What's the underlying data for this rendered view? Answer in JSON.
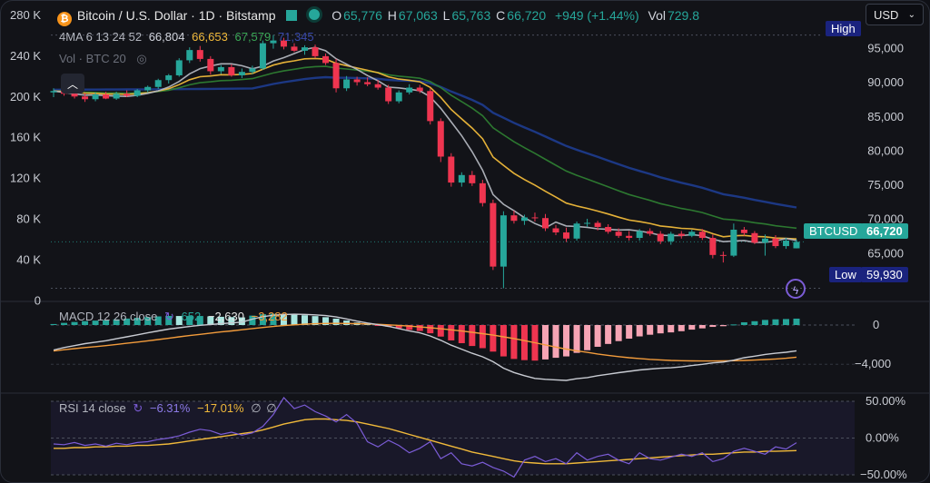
{
  "header": {
    "title": "Bitcoin / U.S. Dollar · 1D · Bitstamp",
    "open_label": "O",
    "open": "65,776",
    "high_label": "H",
    "high": "67,063",
    "low_label": "L",
    "low": "65,763",
    "close_label": "C",
    "close": "66,720",
    "change": "+949 (+1.44%)",
    "vol_label": "Vol",
    "vol": "729.8"
  },
  "currency_select": {
    "value": "USD"
  },
  "ma_legend": {
    "label": "4MA 6 13 24 52",
    "v1": "66,804",
    "v2": "66,653",
    "v3": "67,579",
    "v4": "71,345"
  },
  "vol_legend": {
    "label": "Vol · BTC 20"
  },
  "price_tags": {
    "high_label": "High",
    "high_value": "97,000",
    "symbol": "BTCUSD",
    "symbol_value": "66,720",
    "low_label": "Low",
    "low_value": "59,930"
  },
  "macd_legend": {
    "label": "MACD 12 26 close",
    "v1": "652",
    "v2": "−2,630",
    "v3": "−3,282"
  },
  "rsi_legend": {
    "label": "RSI 14 close",
    "v1": "−6.31%",
    "v2": "−17.01%",
    "v3": "∅",
    "v4": "∅"
  },
  "colors": {
    "up": "#26a69a",
    "down": "#ef3550",
    "ma1": "#b2b5be",
    "ma2": "#f0b93a",
    "ma3": "#2e7d32",
    "ma4": "#1e3a8a",
    "macd": "#c8cbd2",
    "signal": "#f39c3c",
    "rsi": "#7b5cd6",
    "rsi_ma": "#f0b93a"
  },
  "chart_data": [
    {
      "type": "candlestick",
      "title": "Bitcoin / U.S. Dollar · 1D · Bitstamp",
      "price_axis_ticks": [
        "95,000",
        "90,000",
        "85,000",
        "80,000",
        "75,000",
        "70,000",
        "65,000"
      ],
      "volume_axis_ticks": [
        "280 K",
        "240 K",
        "200 K",
        "160 K",
        "120 K",
        "80 K",
        "40 K",
        "0"
      ],
      "ylim": [
        58000,
        100000
      ],
      "candles": [
        [
          88600,
          89200,
          87900,
          88800
        ],
        [
          88800,
          89400,
          88100,
          88400
        ],
        [
          88400,
          89000,
          87700,
          88000
        ],
        [
          88000,
          88500,
          87200,
          87600
        ],
        [
          87600,
          88600,
          87300,
          88300
        ],
        [
          88300,
          88700,
          87600,
          87700
        ],
        [
          87700,
          88700,
          87500,
          88400
        ],
        [
          88400,
          88900,
          87900,
          88100
        ],
        [
          88100,
          89100,
          87900,
          88900
        ],
        [
          88900,
          89600,
          88600,
          89400
        ],
        [
          89400,
          90600,
          89100,
          90400
        ],
        [
          90400,
          91300,
          89900,
          91100
        ],
        [
          91100,
          93600,
          90900,
          93300
        ],
        [
          93300,
          95200,
          92900,
          94800
        ],
        [
          94800,
          95400,
          93100,
          93500
        ],
        [
          93500,
          93900,
          91200,
          91700
        ],
        [
          91700,
          92600,
          91300,
          92300
        ],
        [
          92300,
          92700,
          90900,
          91100
        ],
        [
          91100,
          92100,
          90700,
          91600
        ],
        [
          91600,
          92500,
          91300,
          92100
        ],
        [
          92100,
          96200,
          91900,
          95800
        ],
        [
          95800,
          97000,
          95000,
          96200
        ],
        [
          96200,
          96600,
          94900,
          95300
        ],
        [
          95300,
          95800,
          94500,
          94700
        ],
        [
          94700,
          95500,
          94100,
          95200
        ],
        [
          95200,
          95600,
          93600,
          93900
        ],
        [
          93900,
          94300,
          92600,
          92900
        ],
        [
          92900,
          93500,
          88600,
          89200
        ],
        [
          89200,
          91000,
          88800,
          90500
        ],
        [
          90500,
          90900,
          89600,
          90100
        ],
        [
          90100,
          90800,
          89500,
          89800
        ],
        [
          89800,
          90400,
          89000,
          89300
        ],
        [
          89300,
          89700,
          86900,
          87300
        ],
        [
          87300,
          88900,
          87000,
          88600
        ],
        [
          88600,
          89800,
          88300,
          89300
        ],
        [
          89300,
          89700,
          88500,
          88800
        ],
        [
          88800,
          89200,
          83900,
          84400
        ],
        [
          84400,
          84800,
          78400,
          79200
        ],
        [
          79200,
          79700,
          74800,
          75400
        ],
        [
          75400,
          76900,
          74800,
          76500
        ],
        [
          76500,
          77100,
          74900,
          75300
        ],
        [
          75300,
          75800,
          71900,
          72400
        ],
        [
          72400,
          72900,
          62600,
          63100
        ],
        [
          63100,
          71200,
          59930,
          70600
        ],
        [
          70600,
          71300,
          69400,
          69800
        ],
        [
          69800,
          70700,
          69200,
          70300
        ],
        [
          70300,
          71000,
          69700,
          70200
        ],
        [
          70200,
          70800,
          68300,
          68700
        ],
        [
          68700,
          69200,
          67700,
          68100
        ],
        [
          68100,
          68800,
          66700,
          67200
        ],
        [
          67200,
          69700,
          66900,
          69400
        ],
        [
          69400,
          70100,
          68900,
          69500
        ],
        [
          69500,
          69800,
          68400,
          68900
        ],
        [
          68900,
          69300,
          67900,
          68200
        ],
        [
          68200,
          68700,
          67300,
          67600
        ],
        [
          67600,
          68300,
          66900,
          67300
        ],
        [
          67300,
          68600,
          66900,
          68300
        ],
        [
          68300,
          68700,
          67600,
          67900
        ],
        [
          67900,
          68300,
          66400,
          66800
        ],
        [
          66800,
          68200,
          66300,
          67900
        ],
        [
          67900,
          68300,
          67200,
          67600
        ],
        [
          67600,
          68500,
          67400,
          68200
        ],
        [
          68200,
          68600,
          67000,
          67300
        ],
        [
          67300,
          67800,
          64300,
          64800
        ],
        [
          64800,
          65300,
          63700,
          64700
        ],
        [
          64700,
          69400,
          64500,
          68500
        ],
        [
          68500,
          68900,
          67600,
          68000
        ],
        [
          68000,
          68300,
          66400,
          66600
        ],
        [
          66600,
          67800,
          64700,
          67200
        ],
        [
          67200,
          67700,
          65800,
          66100
        ],
        [
          66100,
          67300,
          65700,
          66900
        ],
        [
          65776,
          67063,
          65763,
          66720
        ]
      ]
    },
    {
      "type": "line",
      "title": "MACD 12 26 close",
      "y_ticks": [
        "0",
        "−4,000"
      ],
      "series_values": [
        "652",
        "−2,630",
        "−3,282"
      ],
      "macd": [
        -2550,
        -2300,
        -2100,
        -1900,
        -1750,
        -1600,
        -1400,
        -1200,
        -1000,
        -800,
        -600,
        -420,
        -280,
        -150,
        -30,
        60,
        140,
        210,
        300,
        600,
        850,
        1000,
        1070,
        1100,
        1080,
        1040,
        960,
        820,
        620,
        400,
        200,
        40,
        -140,
        -360,
        -600,
        -800,
        -1120,
        -1560,
        -2060,
        -2460,
        -2880,
        -3240,
        -3740,
        -4400,
        -4840,
        -5170,
        -5440,
        -5540,
        -5590,
        -5650,
        -5470,
        -5360,
        -5170,
        -5020,
        -4860,
        -4720,
        -4580,
        -4490,
        -4410,
        -4360,
        -4270,
        -4130,
        -4010,
        -3860,
        -3780,
        -3580,
        -3330,
        -3180,
        -3000,
        -2880,
        -2780,
        -2630
      ],
      "signal": [
        -2650,
        -2520,
        -2410,
        -2300,
        -2200,
        -2100,
        -1980,
        -1860,
        -1740,
        -1610,
        -1480,
        -1350,
        -1200,
        -1070,
        -950,
        -820,
        -700,
        -600,
        -480,
        -360,
        -250,
        -150,
        -60,
        20,
        80,
        130,
        160,
        170,
        160,
        140,
        110,
        70,
        20,
        -40,
        -110,
        -190,
        -280,
        -380,
        -490,
        -610,
        -740,
        -880,
        -1030,
        -1200,
        -1380,
        -1590,
        -1810,
        -2030,
        -2250,
        -2450,
        -2630,
        -2790,
        -2950,
        -3090,
        -3220,
        -3330,
        -3420,
        -3500,
        -3560,
        -3610,
        -3640,
        -3660,
        -3670,
        -3670,
        -3660,
        -3640,
        -3610,
        -3570,
        -3520,
        -3460,
        -3390,
        -3282
      ],
      "histogram": [
        100,
        220,
        310,
        400,
        450,
        500,
        580,
        660,
        740,
        810,
        880,
        930,
        920,
        920,
        920,
        880,
        840,
        810,
        780,
        960,
        1100,
        1150,
        1130,
        1080,
        1000,
        910,
        800,
        650,
        460,
        260,
        90,
        -30,
        -160,
        -320,
        -490,
        -610,
        -840,
        -1180,
        -1570,
        -1850,
        -2140,
        -2360,
        -2710,
        -3200,
        -3460,
        -3580,
        -3630,
        -3510,
        -3340,
        -3200,
        -2840,
        -2570,
        -2220,
        -1930,
        -1640,
        -1390,
        -1160,
        -990,
        -850,
        -750,
        -630,
        -470,
        -340,
        -190,
        -120,
        60,
        280,
        390,
        520,
        580,
        610,
        652
      ]
    },
    {
      "type": "line",
      "title": "RSI 14 close",
      "y_ticks": [
        "50.00%",
        "0.00%",
        "−50.00%"
      ],
      "series_values": [
        "−6.31%",
        "−17.01%"
      ],
      "ylim": [
        -55,
        55
      ],
      "rsi": [
        -8,
        -9,
        -6,
        -10,
        -8,
        -11,
        -7,
        -9,
        -6,
        -5,
        -2,
        0,
        3,
        8,
        12,
        10,
        5,
        8,
        4,
        7,
        16,
        32,
        55,
        40,
        45,
        36,
        30,
        22,
        32,
        20,
        -5,
        -12,
        -3,
        -10,
        -20,
        -14,
        -5,
        -28,
        -20,
        -35,
        -38,
        -33,
        -40,
        -45,
        -53,
        -30,
        -25,
        -32,
        -28,
        -35,
        -20,
        -30,
        -25,
        -22,
        -30,
        -35,
        -20,
        -28,
        -30,
        -26,
        -22,
        -25,
        -20,
        -32,
        -28,
        -18,
        -14,
        -18,
        -22,
        -12,
        -15,
        -6.31
      ],
      "rsi_ma": [
        -14,
        -14,
        -13,
        -13,
        -12,
        -12,
        -11,
        -11,
        -10,
        -10,
        -9,
        -8,
        -6,
        -4,
        -2,
        0,
        2,
        4,
        6,
        8,
        11,
        15,
        19,
        22,
        25,
        26,
        26,
        25,
        24,
        22,
        19,
        16,
        13,
        9,
        5,
        1,
        -3,
        -7,
        -11,
        -15,
        -19,
        -22,
        -25,
        -28,
        -31,
        -33,
        -34,
        -35,
        -35,
        -35,
        -34,
        -33,
        -32,
        -31,
        -30,
        -29,
        -28,
        -27,
        -26,
        -25,
        -24,
        -23,
        -22,
        -22,
        -21,
        -20,
        -19,
        -19,
        -18,
        -18,
        -17.5,
        -17.01
      ]
    }
  ]
}
